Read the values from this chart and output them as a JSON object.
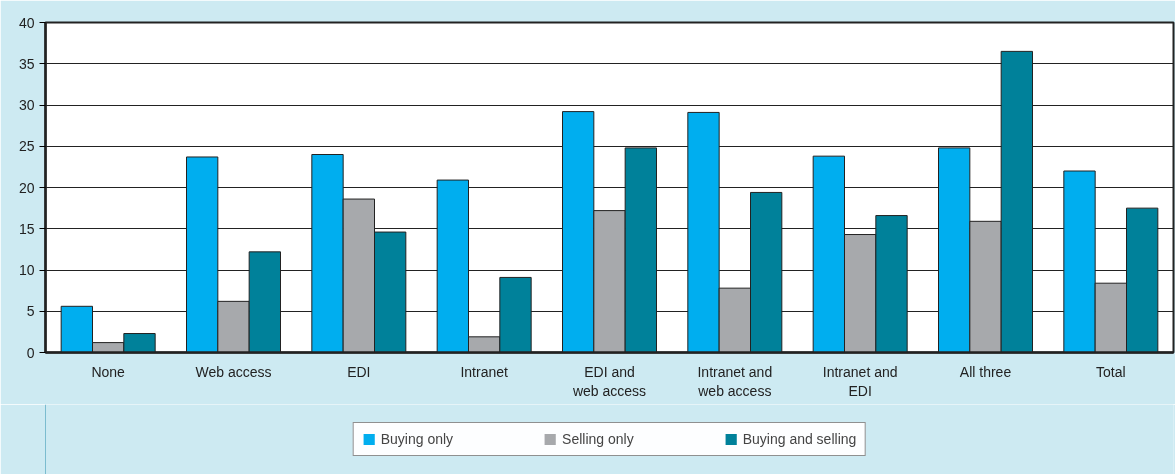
{
  "chart_data": {
    "type": "bar",
    "categories": [
      "None",
      "Web access",
      "EDI",
      "Intranet",
      "EDI and\nweb access",
      "Intranet and\nweb access",
      "Intranet and\nEDI",
      "All three",
      "Total"
    ],
    "series": [
      {
        "name": "Buying only",
        "color": "#00aeef",
        "values": [
          5.6,
          23.7,
          24,
          20.9,
          29.2,
          29.1,
          23.8,
          24.8,
          22
        ]
      },
      {
        "name": "Selling only",
        "color": "#a7a9ac",
        "values": [
          1.2,
          6.2,
          18.6,
          1.9,
          17.2,
          7.8,
          14.3,
          15.9,
          8.4
        ]
      },
      {
        "name": "Buying and selling",
        "color": "#00819a",
        "values": [
          2.3,
          12.2,
          14.6,
          9.1,
          24.8,
          19.4,
          16.6,
          36.5,
          17.5
        ]
      }
    ],
    "ylim": [
      0,
      40
    ],
    "yticks": [
      0,
      5,
      10,
      15,
      20,
      25,
      30,
      35,
      40
    ],
    "grid": "y",
    "legend": "bottom"
  }
}
